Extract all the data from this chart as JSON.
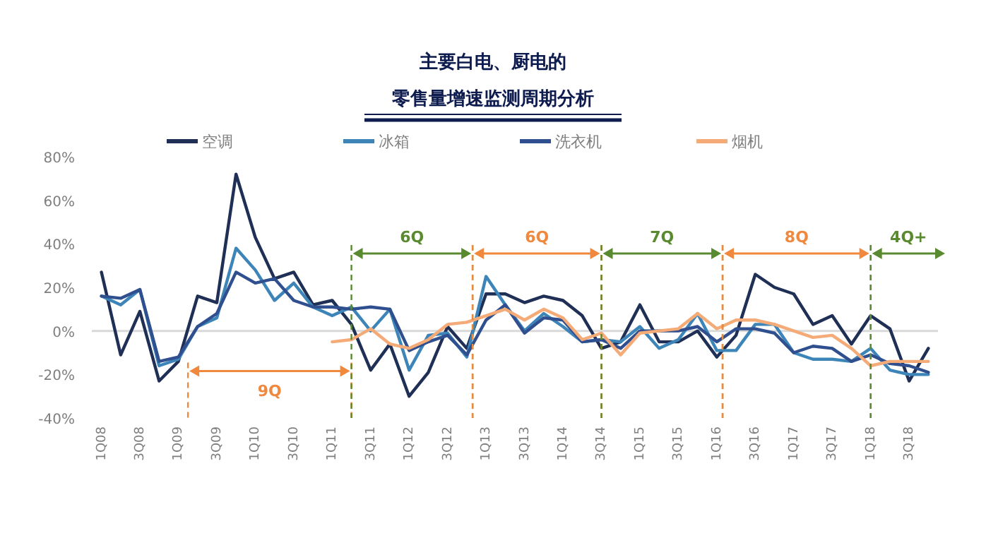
{
  "chart_data": {
    "type": "line",
    "title": "主要白电、厨电的",
    "subtitle": "零售量增速监测周期分析",
    "categories": [
      "1Q08",
      null,
      "3Q08",
      null,
      "1Q09",
      null,
      "3Q09",
      null,
      "1Q10",
      null,
      "3Q10",
      null,
      "1Q11",
      null,
      "3Q11",
      null,
      "1Q12",
      null,
      "3Q12",
      null,
      "1Q13",
      null,
      "3Q13",
      null,
      "1Q14",
      null,
      "3Q14",
      null,
      "1Q15",
      null,
      "3Q15",
      null,
      "1Q16",
      null,
      "3Q16",
      null,
      "1Q17",
      null,
      "3Q17",
      null,
      "1Q18",
      null,
      "3Q18",
      null
    ],
    "series": [
      {
        "name": "空调",
        "color": "#1f2f55",
        "values": [
          27,
          -11,
          9,
          -23,
          -14,
          16,
          13,
          72,
          43,
          24,
          27,
          12,
          14,
          3,
          -18,
          -6,
          -30,
          -19,
          2,
          -8,
          17,
          17,
          13,
          16,
          14,
          7,
          -8,
          -5,
          12,
          -5,
          -5,
          0,
          -12,
          -2,
          26,
          20,
          17,
          3,
          7,
          -6,
          7,
          1,
          -23,
          -8
        ]
      },
      {
        "name": "冰箱",
        "color": "#3d85b8",
        "values": [
          16,
          12,
          19,
          -16,
          -13,
          2,
          6,
          38,
          28,
          14,
          22,
          11,
          7,
          11,
          0,
          10,
          -18,
          -2,
          -1,
          -12,
          25,
          12,
          0,
          8,
          2,
          -5,
          -4,
          -5,
          2,
          -8,
          -4,
          8,
          -9,
          -9,
          3,
          3,
          -10,
          -13,
          -13,
          -14,
          -8,
          -18,
          -20,
          -20
        ]
      },
      {
        "name": "洗衣机",
        "color": "#2f4f8f",
        "values": [
          16,
          15,
          19,
          -14,
          -12,
          2,
          8,
          27,
          22,
          24,
          14,
          11,
          11,
          10,
          11,
          10,
          -9,
          -5,
          -2,
          -11,
          5,
          12,
          -1,
          6,
          5,
          -5,
          -4,
          -8,
          0,
          0,
          0,
          2,
          -5,
          1,
          1,
          -1,
          -10,
          -7,
          -8,
          -14,
          -11,
          -15,
          -16,
          -19
        ]
      },
      {
        "name": "烟机",
        "color": "#f4ab78",
        "values": [
          null,
          null,
          null,
          null,
          null,
          null,
          null,
          null,
          null,
          null,
          null,
          null,
          -5,
          -4,
          1,
          -6,
          -8,
          -4,
          3,
          4,
          7,
          10,
          5,
          10,
          6,
          -4,
          -1,
          -11,
          -1,
          0,
          1,
          8,
          1,
          5,
          5,
          3,
          0,
          -3,
          -2,
          -8,
          -16,
          -14,
          -14,
          -14
        ]
      }
    ],
    "ylim": [
      -40,
      80
    ],
    "yticks": [
      {
        "value": -40,
        "label": "-40%"
      },
      {
        "value": -20,
        "label": "-20%"
      },
      {
        "value": 0,
        "label": "0%"
      },
      {
        "value": 20,
        "label": "20%"
      },
      {
        "value": 40,
        "label": "40%"
      },
      {
        "value": 60,
        "label": "60%"
      },
      {
        "value": 80,
        "label": "80%"
      }
    ],
    "ref_lines": [
      {
        "axis": "y",
        "value": 0,
        "color": "#d9d9d9"
      }
    ],
    "annotations": [
      "9Q",
      "6Q",
      "6Q",
      "7Q",
      "8Q",
      "4Q+"
    ],
    "legend": "top",
    "grid": false,
    "marker": "none",
    "line_style": "solid"
  }
}
